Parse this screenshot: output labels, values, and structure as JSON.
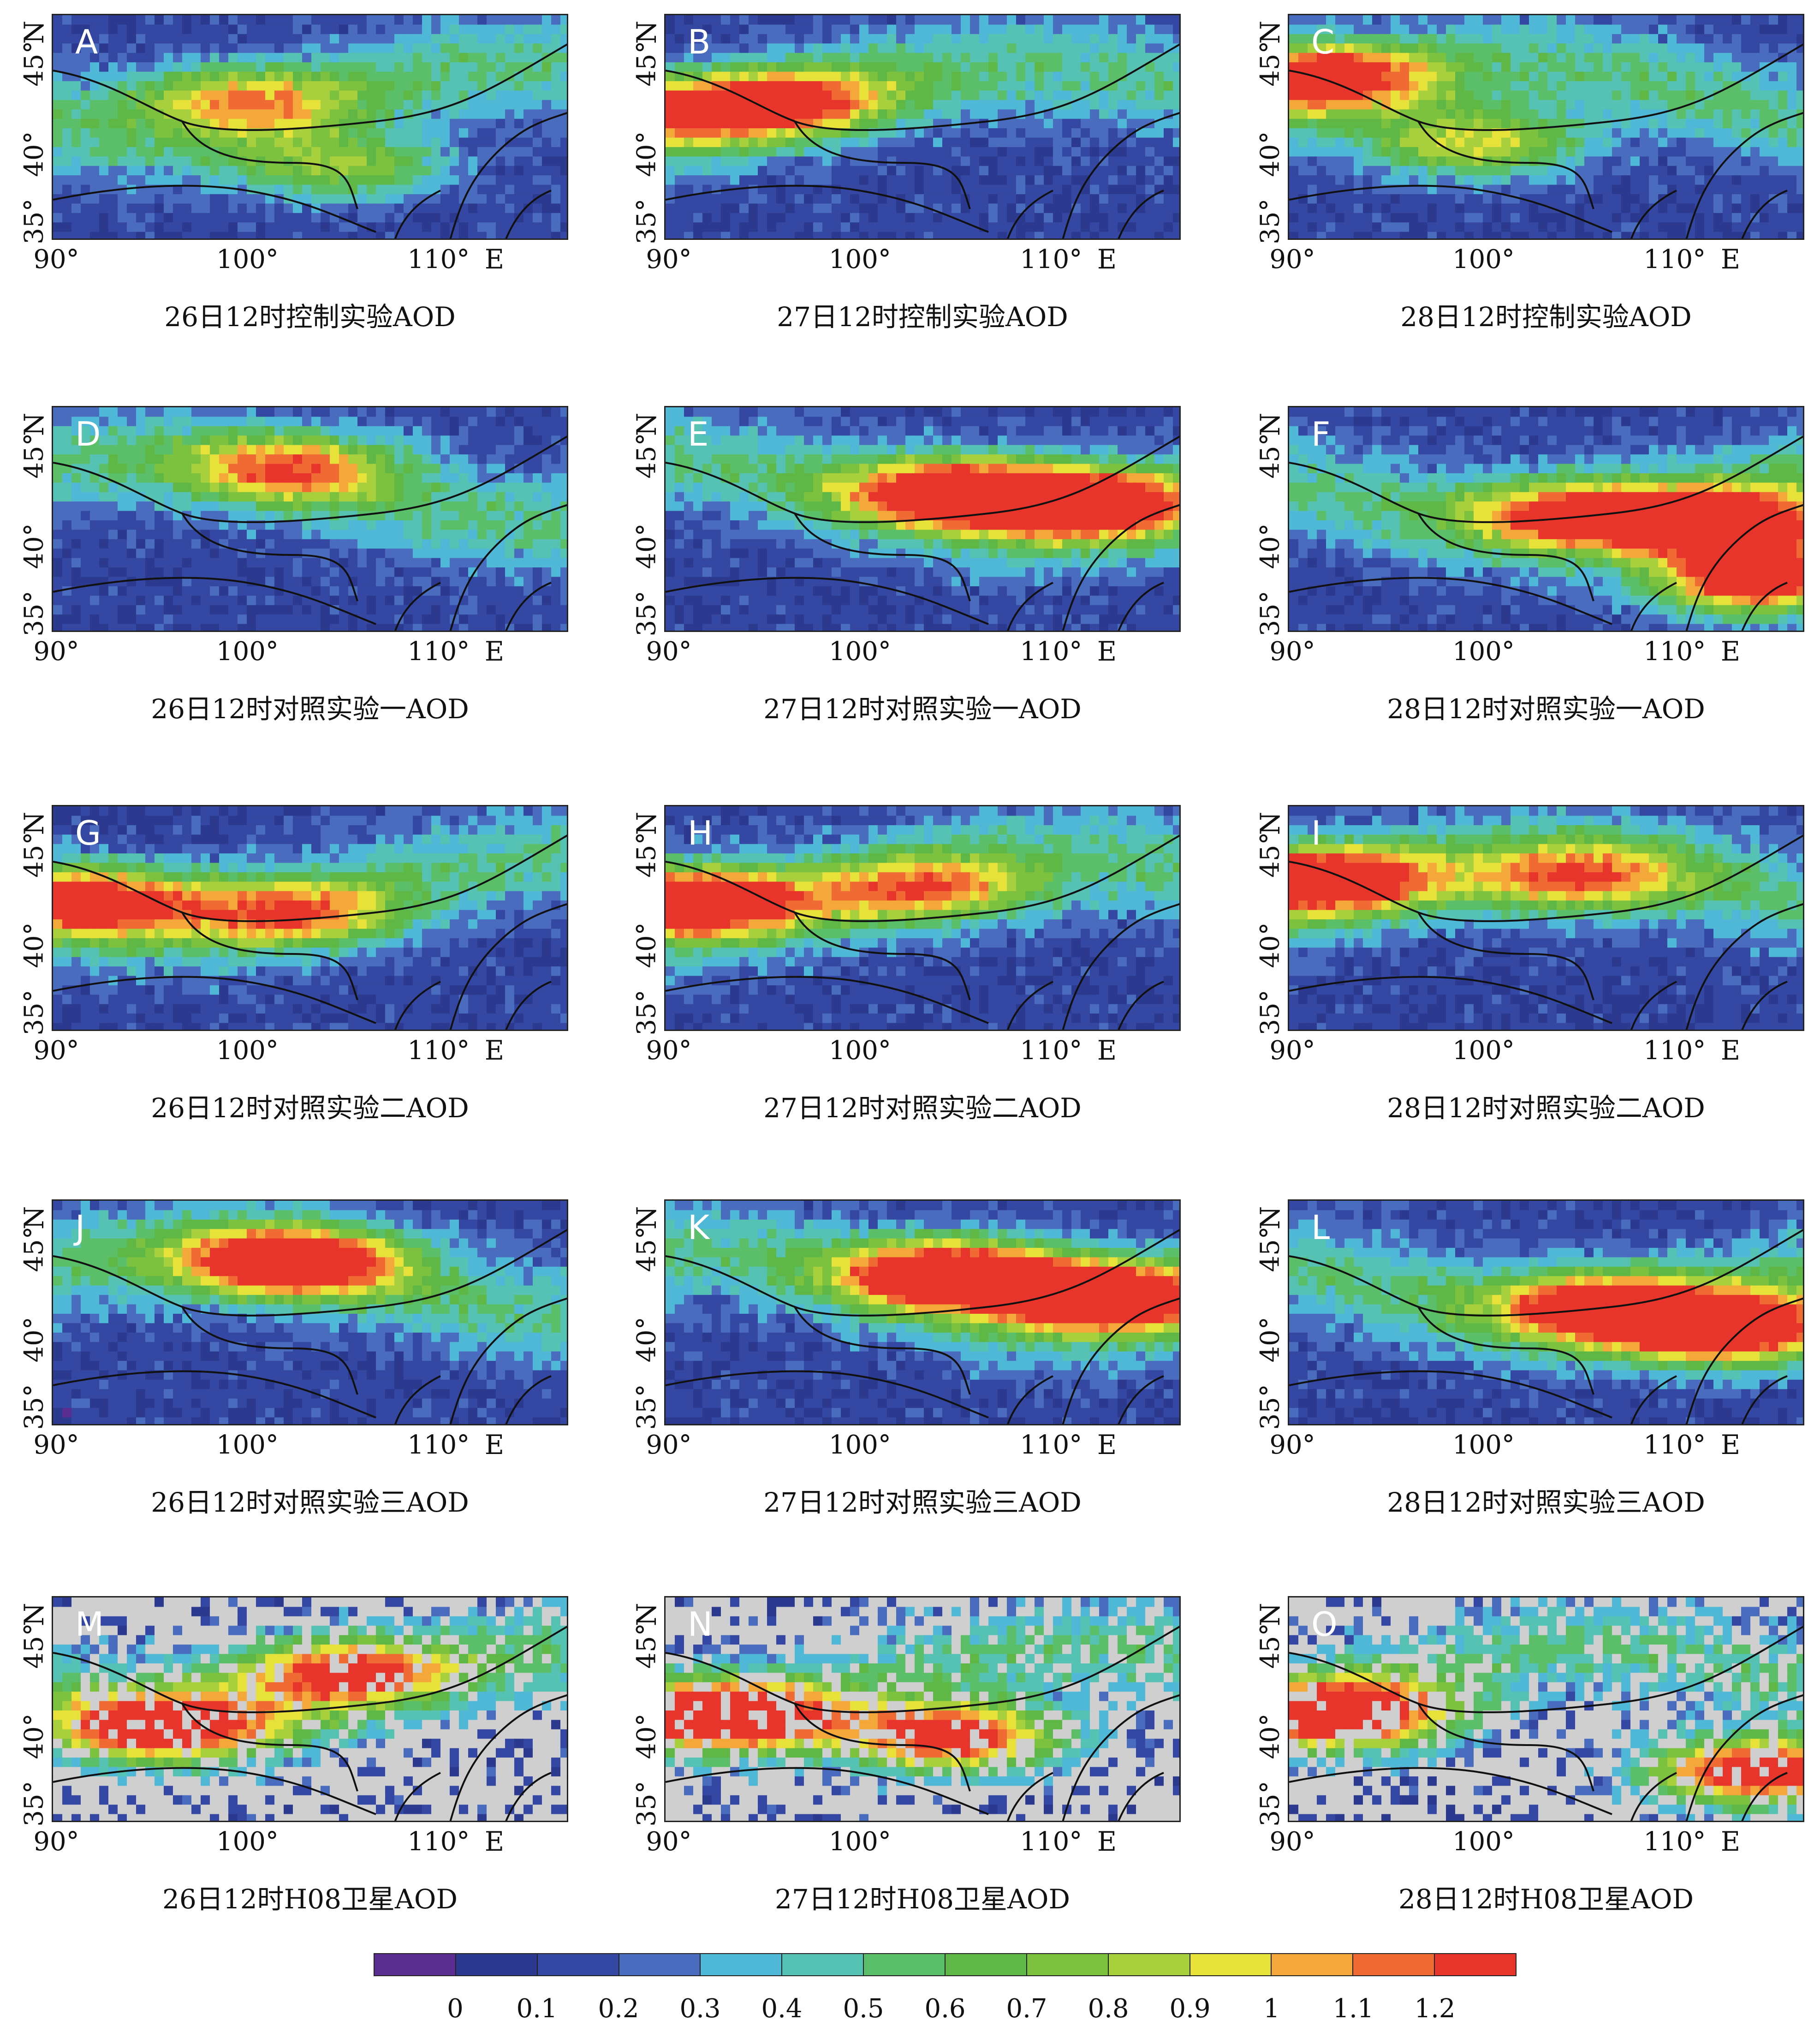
{
  "panels": [
    {
      "letter": "A",
      "caption": "26日12时控制实验AOD",
      "kind": "model",
      "hot": [
        [
          0.35,
          0.35,
          0.5
        ],
        [
          0.55,
          0.65,
          0.45
        ]
      ],
      "seed": 1
    },
    {
      "letter": "B",
      "caption": "27日12时控制实验AOD",
      "kind": "model",
      "hot": [
        [
          0.05,
          0.4,
          0.6
        ],
        [
          0.25,
          0.35,
          0.5
        ]
      ],
      "seed": 2
    },
    {
      "letter": "C",
      "caption": "28日12时控制实验AOD",
      "kind": "model",
      "hot": [
        [
          0.05,
          0.25,
          0.8
        ],
        [
          0.35,
          0.55,
          0.55
        ]
      ],
      "seed": 3
    },
    {
      "letter": "D",
      "caption": "26日12时对照实验一AOD",
      "kind": "model",
      "hot": [
        [
          0.45,
          0.25,
          0.55
        ]
      ],
      "seed": 4
    },
    {
      "letter": "E",
      "caption": "27日12时对照实验一AOD",
      "kind": "model",
      "hot": [
        [
          0.55,
          0.35,
          0.85
        ],
        [
          0.8,
          0.4,
          0.95
        ]
      ],
      "seed": 5
    },
    {
      "letter": "F",
      "caption": "28日12时对照实验一AOD",
      "kind": "model",
      "hot": [
        [
          0.85,
          0.5,
          0.95
        ],
        [
          0.9,
          0.75,
          0.9
        ],
        [
          0.55,
          0.45,
          0.7
        ]
      ],
      "seed": 6
    },
    {
      "letter": "G",
      "caption": "26日12时对照实验二AOD",
      "kind": "model",
      "hot": [
        [
          0.05,
          0.4,
          0.8
        ],
        [
          0.45,
          0.45,
          0.55
        ]
      ],
      "seed": 7
    },
    {
      "letter": "H",
      "caption": "27日12时对照实验二AOD",
      "kind": "model",
      "hot": [
        [
          0.05,
          0.4,
          0.95
        ],
        [
          0.5,
          0.35,
          0.55
        ]
      ],
      "seed": 8
    },
    {
      "letter": "I",
      "caption": "28日12时对照实验二AOD",
      "kind": "model",
      "hot": [
        [
          0.05,
          0.3,
          0.95
        ],
        [
          0.55,
          0.3,
          0.6
        ]
      ],
      "seed": 9
    },
    {
      "letter": "J",
      "caption": "26日12时对照实验三AOD",
      "kind": "model",
      "hot": [
        [
          0.45,
          0.25,
          0.95
        ]
      ],
      "seed": 10
    },
    {
      "letter": "K",
      "caption": "27日12时对照实验三AOD",
      "kind": "model",
      "hot": [
        [
          0.55,
          0.3,
          1.0
        ],
        [
          0.85,
          0.4,
          1.0
        ]
      ],
      "seed": 11
    },
    {
      "letter": "L",
      "caption": "28日12时对照实验三AOD",
      "kind": "model",
      "hot": [
        [
          0.85,
          0.55,
          1.0
        ],
        [
          0.6,
          0.45,
          0.8
        ]
      ],
      "seed": 12
    },
    {
      "letter": "M",
      "caption": "26日12时H08卫星AOD",
      "kind": "sat",
      "hot": [
        [
          0.2,
          0.55,
          0.9
        ],
        [
          0.55,
          0.3,
          0.7
        ]
      ],
      "seed": 13
    },
    {
      "letter": "N",
      "caption": "27日12时H08卫星AOD",
      "kind": "sat",
      "hot": [
        [
          0.1,
          0.5,
          0.95
        ],
        [
          0.55,
          0.6,
          0.9
        ]
      ],
      "seed": 14
    },
    {
      "letter": "O",
      "caption": "28日12时H08卫星AOD",
      "kind": "sat",
      "hot": [
        [
          0.1,
          0.5,
          0.95
        ],
        [
          0.9,
          0.75,
          1.0
        ]
      ],
      "seed": 15
    }
  ],
  "axes": {
    "x_ticks": [
      "90°",
      "100°",
      "110°"
    ],
    "x_unit": "E",
    "y_ticks": [
      "35°",
      "40°",
      "45°"
    ],
    "y_unit": "N"
  },
  "colorbar": {
    "colors": [
      "#5a2d91",
      "#2b3a8f",
      "#3448a3",
      "#4a6cbf",
      "#4fb8d6",
      "#55c2b4",
      "#5bbf6a",
      "#5fb846",
      "#7cc23e",
      "#a8cf3c",
      "#e6e23a",
      "#f5a83a",
      "#f06a34",
      "#e8352b"
    ],
    "labels": [
      "0",
      "0.1",
      "0.2",
      "0.3",
      "0.4",
      "0.5",
      "0.6",
      "0.7",
      "0.8",
      "0.9",
      "1",
      "1.1",
      "1.2"
    ]
  },
  "chart_data": {
    "type": "heatmap",
    "grid": {
      "columns": 3,
      "rows": 5
    },
    "xlim": [
      90,
      117
    ],
    "ylim": [
      35,
      48
    ],
    "variable": "AOD",
    "scale": [
      0,
      0.1,
      0.2,
      0.3,
      0.4,
      0.5,
      0.6,
      0.7,
      0.8,
      0.9,
      1,
      1.1,
      1.2
    ],
    "missing_color": "#cfcfcf"
  }
}
